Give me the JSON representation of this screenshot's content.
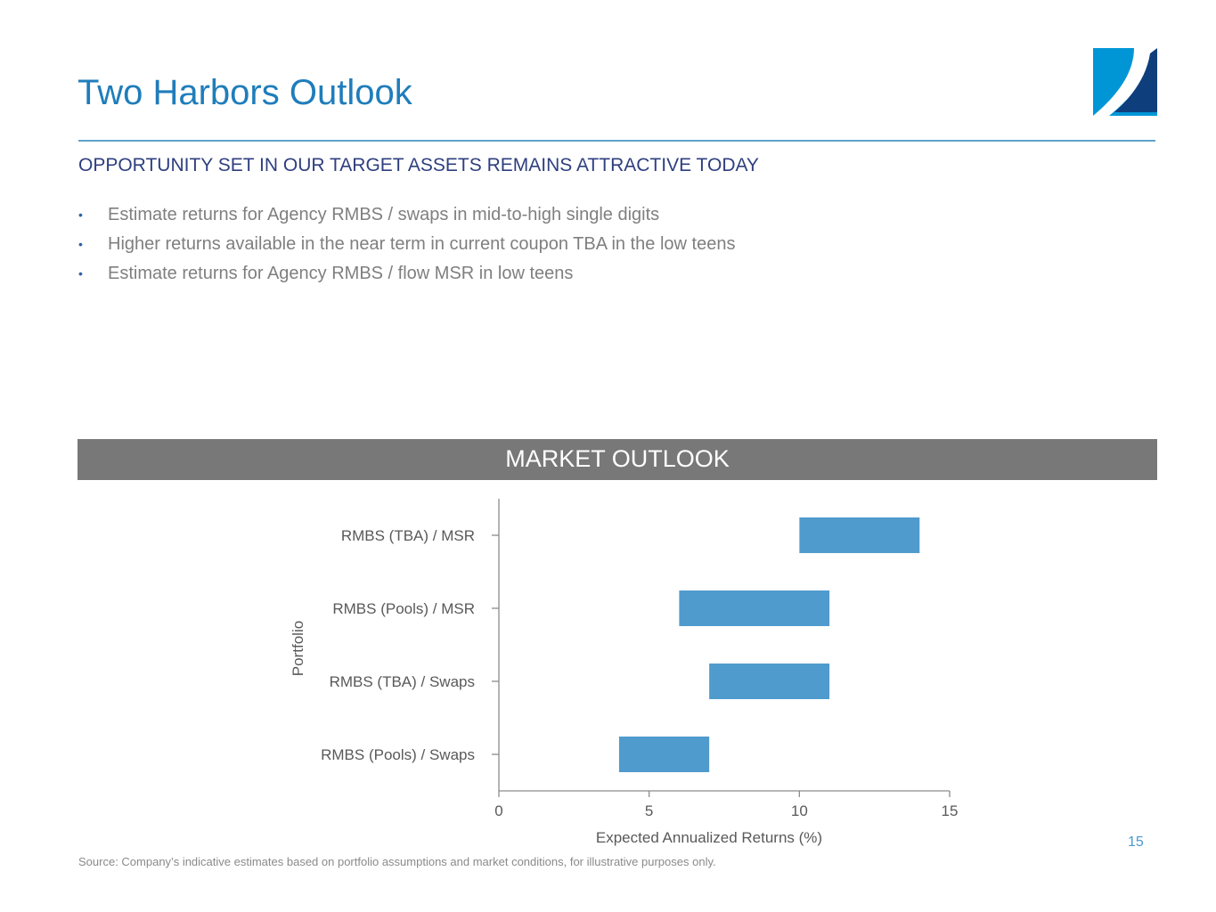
{
  "slide": {
    "title": "Two Harbors Outlook",
    "section_heading": "OPPORTUNITY SET IN OUR TARGET ASSETS REMAINS ATTRACTIVE TODAY",
    "bullets": [
      "Estimate returns for Agency RMBS / swaps in mid-to-high single digits",
      "Higher returns available in the near term in current coupon TBA in the low teens",
      "Estimate returns for Agency RMBS / flow MSR in low teens"
    ],
    "bullet_glyph": "•",
    "banner": "MARKET OUTLOOK",
    "source": "Source: Company’s indicative estimates based on portfolio assumptions and market conditions, for illustrative purposes only.",
    "page_number": "15"
  },
  "colors": {
    "title": "#1f7dbb",
    "heading": "#2e3f7f",
    "banner_bg": "#787878",
    "bar": "#4f9bcd",
    "logo_light": "#0096d6",
    "logo_dark": "#0e3f7c"
  },
  "chart_data": {
    "type": "bar",
    "orientation": "horizontal",
    "floating": true,
    "categories": [
      "RMBS (TBA) / MSR",
      "RMBS (Pools) / MSR",
      "RMBS (TBA) / Swaps",
      "RMBS (Pools) / Swaps"
    ],
    "ranges": [
      [
        10,
        14
      ],
      [
        6,
        11
      ],
      [
        7,
        11
      ],
      [
        4,
        7
      ]
    ],
    "xlabel": "Expected Annualized Returns (%)",
    "ylabel": "Portfolio",
    "xlim": [
      0,
      15
    ],
    "xticks": [
      0,
      5,
      10,
      15
    ],
    "grid": false,
    "legend": "none"
  }
}
